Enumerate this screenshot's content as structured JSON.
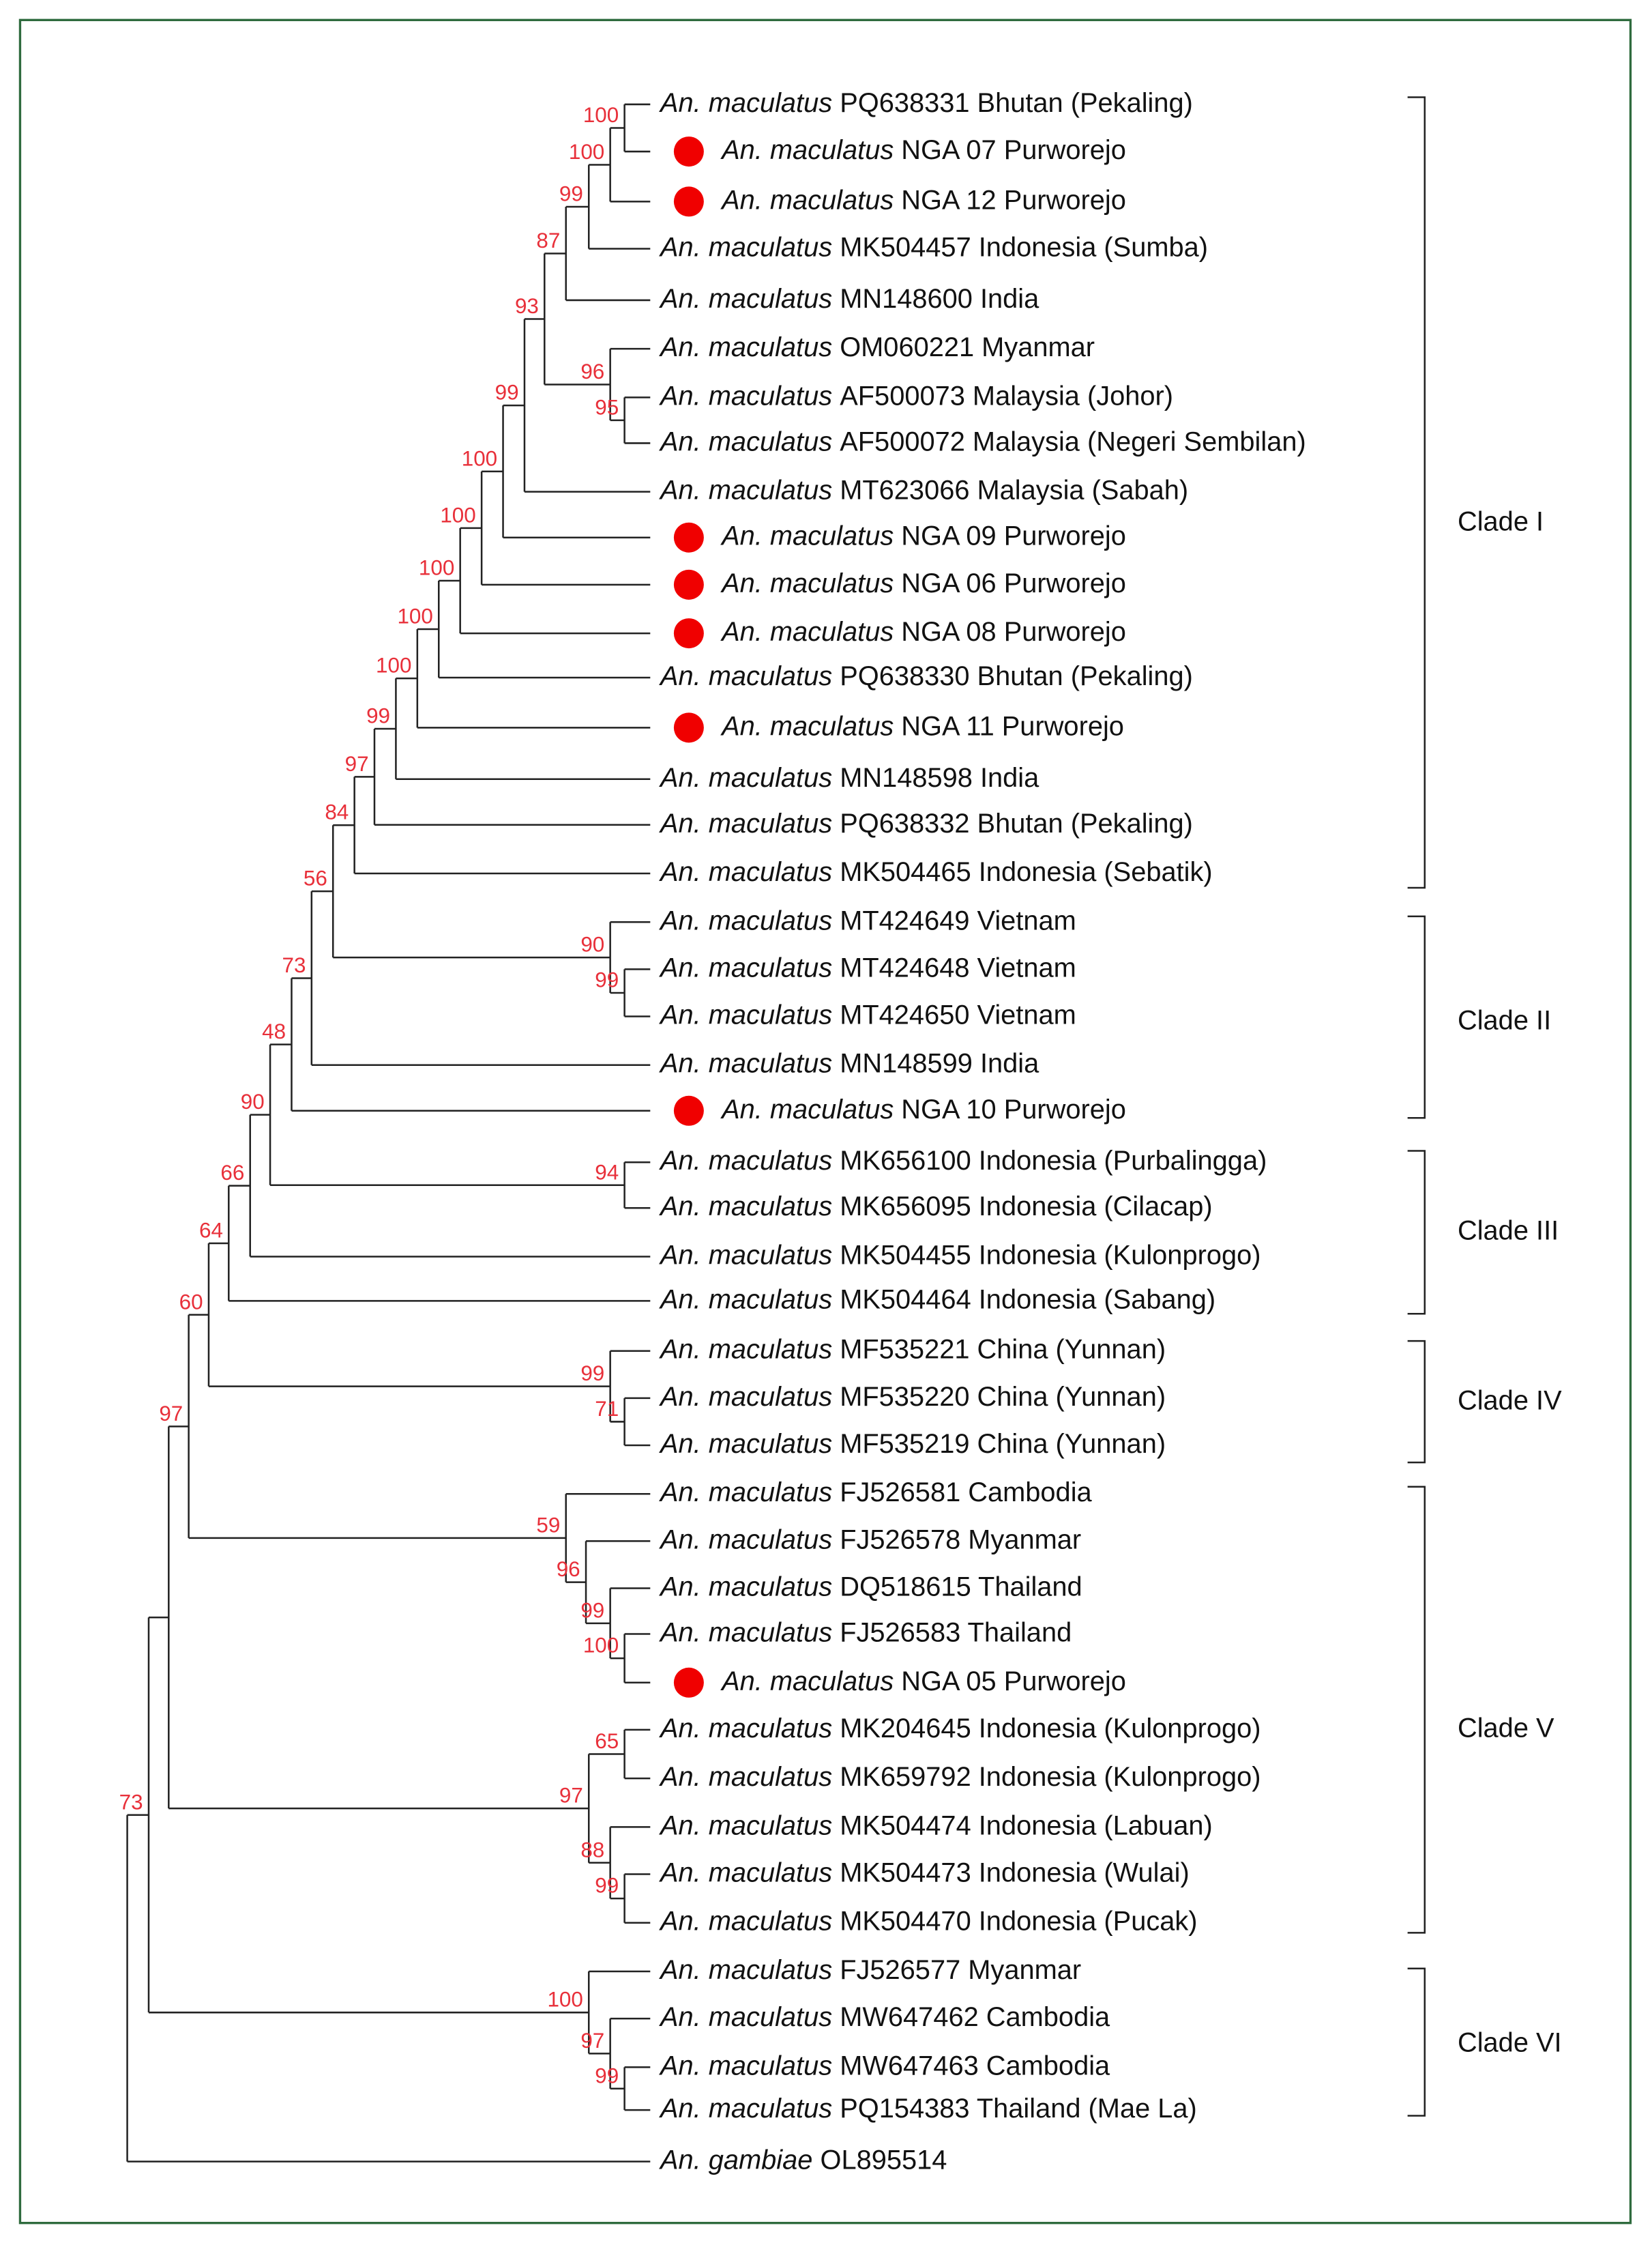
{
  "leaves": [
    {
      "genus": "An. maculatus",
      "label": "PQ638331 Bhutan (Pekaling)",
      "marked": false
    },
    {
      "genus": "An. maculatus",
      "label": "NGA 07 Purworejo",
      "marked": true
    },
    {
      "genus": "An. maculatus",
      "label": "NGA 12 Purworejo",
      "marked": true
    },
    {
      "genus": "An. maculatus",
      "label": "MK504457 Indonesia (Sumba)",
      "marked": false
    },
    {
      "genus": "An. maculatus",
      "label": "MN148600 India",
      "marked": false
    },
    {
      "genus": "An. maculatus",
      "label": "OM060221 Myanmar",
      "marked": false
    },
    {
      "genus": "An. maculatus",
      "label": "AF500073 Malaysia (Johor)",
      "marked": false
    },
    {
      "genus": "An. maculatus",
      "label": "AF500072 Malaysia (Negeri Sembilan)",
      "marked": false
    },
    {
      "genus": "An. maculatus",
      "label": "MT623066 Malaysia (Sabah)",
      "marked": false
    },
    {
      "genus": "An. maculatus",
      "label": "NGA 09 Purworejo",
      "marked": true
    },
    {
      "genus": "An. maculatus",
      "label": "NGA 06 Purworejo",
      "marked": true
    },
    {
      "genus": "An. maculatus",
      "label": "NGA 08 Purworejo",
      "marked": true
    },
    {
      "genus": "An. maculatus",
      "label": "PQ638330 Bhutan (Pekaling)",
      "marked": false
    },
    {
      "genus": "An. maculatus",
      "label": "NGA 11 Purworejo",
      "marked": true
    },
    {
      "genus": "An. maculatus",
      "label": "MN148598 India",
      "marked": false
    },
    {
      "genus": "An. maculatus",
      "label": "PQ638332 Bhutan (Pekaling)",
      "marked": false
    },
    {
      "genus": "An. maculatus",
      "label": "MK504465 Indonesia (Sebatik)",
      "marked": false
    },
    {
      "genus": "An. maculatus",
      "label": "MT424649 Vietnam",
      "marked": false
    },
    {
      "genus": "An. maculatus",
      "label": "MT424648 Vietnam",
      "marked": false
    },
    {
      "genus": "An. maculatus",
      "label": "MT424650 Vietnam",
      "marked": false
    },
    {
      "genus": "An. maculatus",
      "label": "MN148599 India",
      "marked": false
    },
    {
      "genus": "An. maculatus",
      "label": "NGA 10 Purworejo",
      "marked": true
    },
    {
      "genus": "An. maculatus",
      "label": "MK656100 Indonesia (Purbalingga)",
      "marked": false
    },
    {
      "genus": "An. maculatus",
      "label": "MK656095 Indonesia (Cilacap)",
      "marked": false
    },
    {
      "genus": "An. maculatus",
      "label": "MK504455 Indonesia (Kulonprogo)",
      "marked": false
    },
    {
      "genus": "An. maculatus",
      "label": "MK504464 Indonesia (Sabang)",
      "marked": false
    },
    {
      "genus": "An. maculatus",
      "label": "MF535221 China (Yunnan)",
      "marked": false
    },
    {
      "genus": "An. maculatus",
      "label": "MF535220 China (Yunnan)",
      "marked": false
    },
    {
      "genus": "An. maculatus",
      "label": "MF535219 China (Yunnan)",
      "marked": false
    },
    {
      "genus": "An. maculatus",
      "label": "FJ526581 Cambodia",
      "marked": false
    },
    {
      "genus": "An. maculatus",
      "label": "FJ526578 Myanmar",
      "marked": false
    },
    {
      "genus": "An. maculatus",
      "label": "DQ518615 Thailand",
      "marked": false
    },
    {
      "genus": "An. maculatus",
      "label": "FJ526583 Thailand",
      "marked": false
    },
    {
      "genus": "An. maculatus",
      "label": "NGA 05 Purworejo",
      "marked": true
    },
    {
      "genus": "An. maculatus",
      "label": "MK204645 Indonesia (Kulonprogo)",
      "marked": false
    },
    {
      "genus": "An. maculatus",
      "label": "MK659792 Indonesia (Kulonprogo)",
      "marked": false
    },
    {
      "genus": "An. maculatus",
      "label": "MK504474 Indonesia (Labuan)",
      "marked": false
    },
    {
      "genus": "An. maculatus",
      "label": "MK504473 Indonesia (Wulai)",
      "marked": false
    },
    {
      "genus": "An. maculatus",
      "label": "MK504470 Indonesia (Pucak)",
      "marked": false
    },
    {
      "genus": "An. maculatus",
      "label": "FJ526577 Myanmar",
      "marked": false
    },
    {
      "genus": "An. maculatus",
      "label": "MW647462 Cambodia",
      "marked": false
    },
    {
      "genus": "An. maculatus",
      "label": "MW647463 Cambodia",
      "marked": false
    },
    {
      "genus": "An. maculatus",
      "label": "PQ154383 Thailand (Mae La)",
      "marked": false
    },
    {
      "genus": "An. gambiae",
      "label": "OL895514",
      "marked": false
    }
  ],
  "bootstraps": [
    100,
    100,
    99,
    87,
    95,
    96,
    93,
    99,
    100,
    100,
    100,
    100,
    100,
    99,
    97,
    84,
    99,
    90,
    56,
    73,
    48,
    94,
    90,
    66,
    64,
    71,
    99,
    60,
    100,
    99,
    96,
    59,
    97,
    65,
    99,
    88,
    97,
    99,
    97,
    100,
    73
  ],
  "clades": [
    "Clade I",
    "Clade II",
    "Clade III",
    "Clade IV",
    "Clade V",
    "Clade VI"
  ]
}
